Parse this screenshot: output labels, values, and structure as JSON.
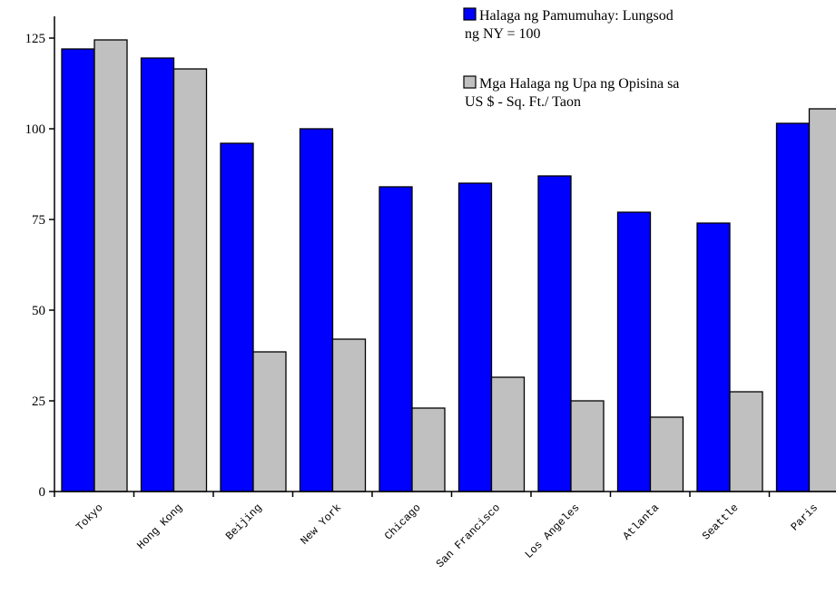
{
  "chart_data": {
    "type": "bar",
    "categories": [
      "Tokyo",
      "Hong Kong",
      "Beijing",
      "New York",
      "Chicago",
      "San Francisco",
      "Los Angeles",
      "Atlanta",
      "Seattle",
      "Paris"
    ],
    "series": [
      {
        "name": "Halaga ng Pamumuhay: Lungsod ng NY = 100",
        "name_lines": [
          "Halaga ng Pamumuhay: Lungsod",
          "ng NY = 100"
        ],
        "color": "#0000ff",
        "values": [
          122,
          119.5,
          96,
          100,
          84,
          85,
          87,
          77,
          74,
          101.5
        ]
      },
      {
        "name": "Mga Halaga ng Upa ng Opisina sa US $ - Sq. Ft./ Taon",
        "name_lines": [
          "Mga Halaga ng Upa ng Opisina sa",
          "US $ -  Sq. Ft./ Taon"
        ],
        "color": "#c0c0c0",
        "values": [
          124.5,
          116.5,
          38.5,
          42,
          23,
          31.5,
          25,
          20.5,
          27.5,
          105.5
        ]
      }
    ],
    "yticks": [
      "0",
      "25",
      "50",
      "75",
      "100",
      "125"
    ],
    "ylim": [
      0,
      130
    ],
    "xlabel": "",
    "ylabel": "",
    "legend_position": "top-right",
    "grid": false
  }
}
